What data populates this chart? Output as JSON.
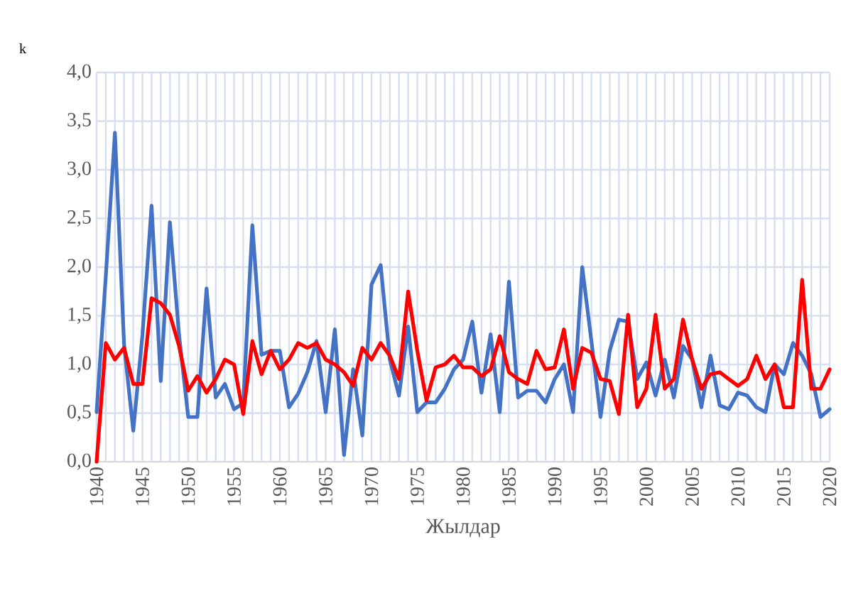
{
  "chart_data": {
    "type": "line",
    "xlabel": "Жылдар",
    "ylabel": "k",
    "grid": true,
    "marker": "none",
    "line_style": "solid",
    "x": [
      1940,
      1941,
      1942,
      1943,
      1944,
      1945,
      1946,
      1947,
      1948,
      1949,
      1950,
      1951,
      1952,
      1953,
      1954,
      1955,
      1956,
      1957,
      1958,
      1959,
      1960,
      1961,
      1962,
      1963,
      1964,
      1965,
      1966,
      1967,
      1968,
      1969,
      1970,
      1971,
      1972,
      1973,
      1974,
      1975,
      1976,
      1977,
      1978,
      1979,
      1980,
      1981,
      1982,
      1983,
      1984,
      1985,
      1986,
      1987,
      1988,
      1989,
      1990,
      1991,
      1992,
      1993,
      1994,
      1995,
      1996,
      1997,
      1998,
      1999,
      2000,
      2001,
      2002,
      2003,
      2004,
      2005,
      2006,
      2007,
      2008,
      2009,
      2010,
      2011,
      2012,
      2013,
      2014,
      2015,
      2016,
      2017,
      2018,
      2019,
      2020
    ],
    "series": [
      {
        "color": "#4472c4",
        "values": [
          0.51,
          1.9,
          3.38,
          1.2,
          0.32,
          1.3,
          2.63,
          0.83,
          2.46,
          1.3,
          0.46,
          0.46,
          1.78,
          0.66,
          0.8,
          0.54,
          0.6,
          2.43,
          1.1,
          1.14,
          1.14,
          0.56,
          0.7,
          0.92,
          1.24,
          0.51,
          1.36,
          0.07,
          0.95,
          0.27,
          1.82,
          2.02,
          1.05,
          0.68,
          1.39,
          0.51,
          0.61,
          0.61,
          0.75,
          0.95,
          1.05,
          1.44,
          0.71,
          1.31,
          0.51,
          1.85,
          0.66,
          0.73,
          0.73,
          0.61,
          0.85,
          1.0,
          0.51,
          2.0,
          1.24,
          0.46,
          1.14,
          1.46,
          1.44,
          0.85,
          1.02,
          0.68,
          1.05,
          0.66,
          1.19,
          1.05,
          0.56,
          1.09,
          0.58,
          0.54,
          0.71,
          0.68,
          0.56,
          0.51,
          1.0,
          0.9,
          1.22,
          1.09,
          0.9,
          0.46,
          0.54
        ]
      },
      {
        "color": "#ff0000",
        "values": [
          0.0,
          1.22,
          1.05,
          1.17,
          0.8,
          0.8,
          1.68,
          1.63,
          1.51,
          1.19,
          0.73,
          0.88,
          0.71,
          0.85,
          1.05,
          1.0,
          0.49,
          1.24,
          0.9,
          1.14,
          0.95,
          1.05,
          1.22,
          1.17,
          1.22,
          1.05,
          1.0,
          0.92,
          0.78,
          1.17,
          1.05,
          1.22,
          1.09,
          0.85,
          1.75,
          1.14,
          0.63,
          0.97,
          1.0,
          1.09,
          0.97,
          0.97,
          0.88,
          0.95,
          1.29,
          0.92,
          0.85,
          0.8,
          1.14,
          0.95,
          0.97,
          1.36,
          0.75,
          1.17,
          1.12,
          0.85,
          0.83,
          0.49,
          1.51,
          0.56,
          0.75,
          1.51,
          0.75,
          0.85,
          1.46,
          1.05,
          0.75,
          0.9,
          0.92,
          0.85,
          0.78,
          0.85,
          1.09,
          0.85,
          1.0,
          0.56,
          0.56,
          1.87,
          0.75,
          0.75,
          0.95
        ]
      }
    ],
    "xlim": [
      1940,
      2020
    ],
    "ylim": [
      0,
      4
    ],
    "xticks": [
      1940,
      {
        "value": 1941,
        "label": null
      },
      {
        "value": 1942,
        "label": null
      },
      {
        "value": 1943,
        "label": null
      },
      {
        "value": 1944,
        "label": null
      },
      1945,
      {
        "value": 1946,
        "label": null
      },
      {
        "value": 1947,
        "label": null
      },
      {
        "value": 1948,
        "label": null
      },
      {
        "value": 1949,
        "label": null
      },
      1950,
      {
        "value": 1951,
        "label": null
      },
      {
        "value": 1952,
        "label": null
      },
      {
        "value": 1953,
        "label": null
      },
      {
        "value": 1954,
        "label": null
      },
      1955,
      {
        "value": 1956,
        "label": null
      },
      {
        "value": 1957,
        "label": null
      },
      {
        "value": 1958,
        "label": null
      },
      {
        "value": 1959,
        "label": null
      },
      1960,
      {
        "value": 1961,
        "label": null
      },
      {
        "value": 1962,
        "label": null
      },
      {
        "value": 1963,
        "label": null
      },
      {
        "value": 1964,
        "label": null
      },
      1965,
      {
        "value": 1966,
        "label": null
      },
      {
        "value": 1967,
        "label": null
      },
      {
        "value": 1968,
        "label": null
      },
      {
        "value": 1969,
        "label": null
      },
      1970,
      {
        "value": 1971,
        "label": null
      },
      {
        "value": 1972,
        "label": null
      },
      {
        "value": 1973,
        "label": null
      },
      {
        "value": 1974,
        "label": null
      },
      1975,
      {
        "value": 1976,
        "label": null
      },
      {
        "value": 1977,
        "label": null
      },
      {
        "value": 1978,
        "label": null
      },
      {
        "value": 1979,
        "label": null
      },
      1980,
      {
        "value": 1981,
        "label": null
      },
      {
        "value": 1982,
        "label": null
      },
      {
        "value": 1983,
        "label": null
      },
      {
        "value": 1984,
        "label": null
      },
      1985,
      {
        "value": 1986,
        "label": null
      },
      {
        "value": 1987,
        "label": null
      },
      {
        "value": 1988,
        "label": null
      },
      {
        "value": 1989,
        "label": null
      },
      1990,
      {
        "value": 1991,
        "label": null
      },
      {
        "value": 1992,
        "label": null
      },
      {
        "value": 1993,
        "label": null
      },
      {
        "value": 1994,
        "label": null
      },
      1995,
      {
        "value": 1996,
        "label": null
      },
      {
        "value": 1997,
        "label": null
      },
      {
        "value": 1998,
        "label": null
      },
      {
        "value": 1999,
        "label": null
      },
      2000,
      {
        "value": 2001,
        "label": null
      },
      {
        "value": 2002,
        "label": null
      },
      {
        "value": 2003,
        "label": null
      },
      {
        "value": 2004,
        "label": null
      },
      2005,
      {
        "value": 2006,
        "label": null
      },
      {
        "value": 2007,
        "label": null
      },
      {
        "value": 2008,
        "label": null
      },
      {
        "value": 2009,
        "label": null
      },
      2010,
      {
        "value": 2011,
        "label": null
      },
      {
        "value": 2012,
        "label": null
      },
      {
        "value": 2013,
        "label": null
      },
      {
        "value": 2014,
        "label": null
      },
      2015,
      {
        "value": 2016,
        "label": null
      },
      {
        "value": 2017,
        "label": null
      },
      {
        "value": 2018,
        "label": null
      },
      {
        "value": 2019,
        "label": null
      },
      2020
    ],
    "yticks": [
      {
        "value": 0,
        "label": "0,0"
      },
      {
        "value": 0.5,
        "label": "0,5"
      },
      {
        "value": 1,
        "label": "1,0"
      },
      {
        "value": 1.5,
        "label": "1,5"
      },
      {
        "value": 2,
        "label": "2,0"
      },
      {
        "value": 2.5,
        "label": "2,5"
      },
      {
        "value": 3,
        "label": "3,0"
      },
      {
        "value": 3.5,
        "label": "3,5"
      },
      {
        "value": 4,
        "label": "4,0"
      }
    ]
  }
}
